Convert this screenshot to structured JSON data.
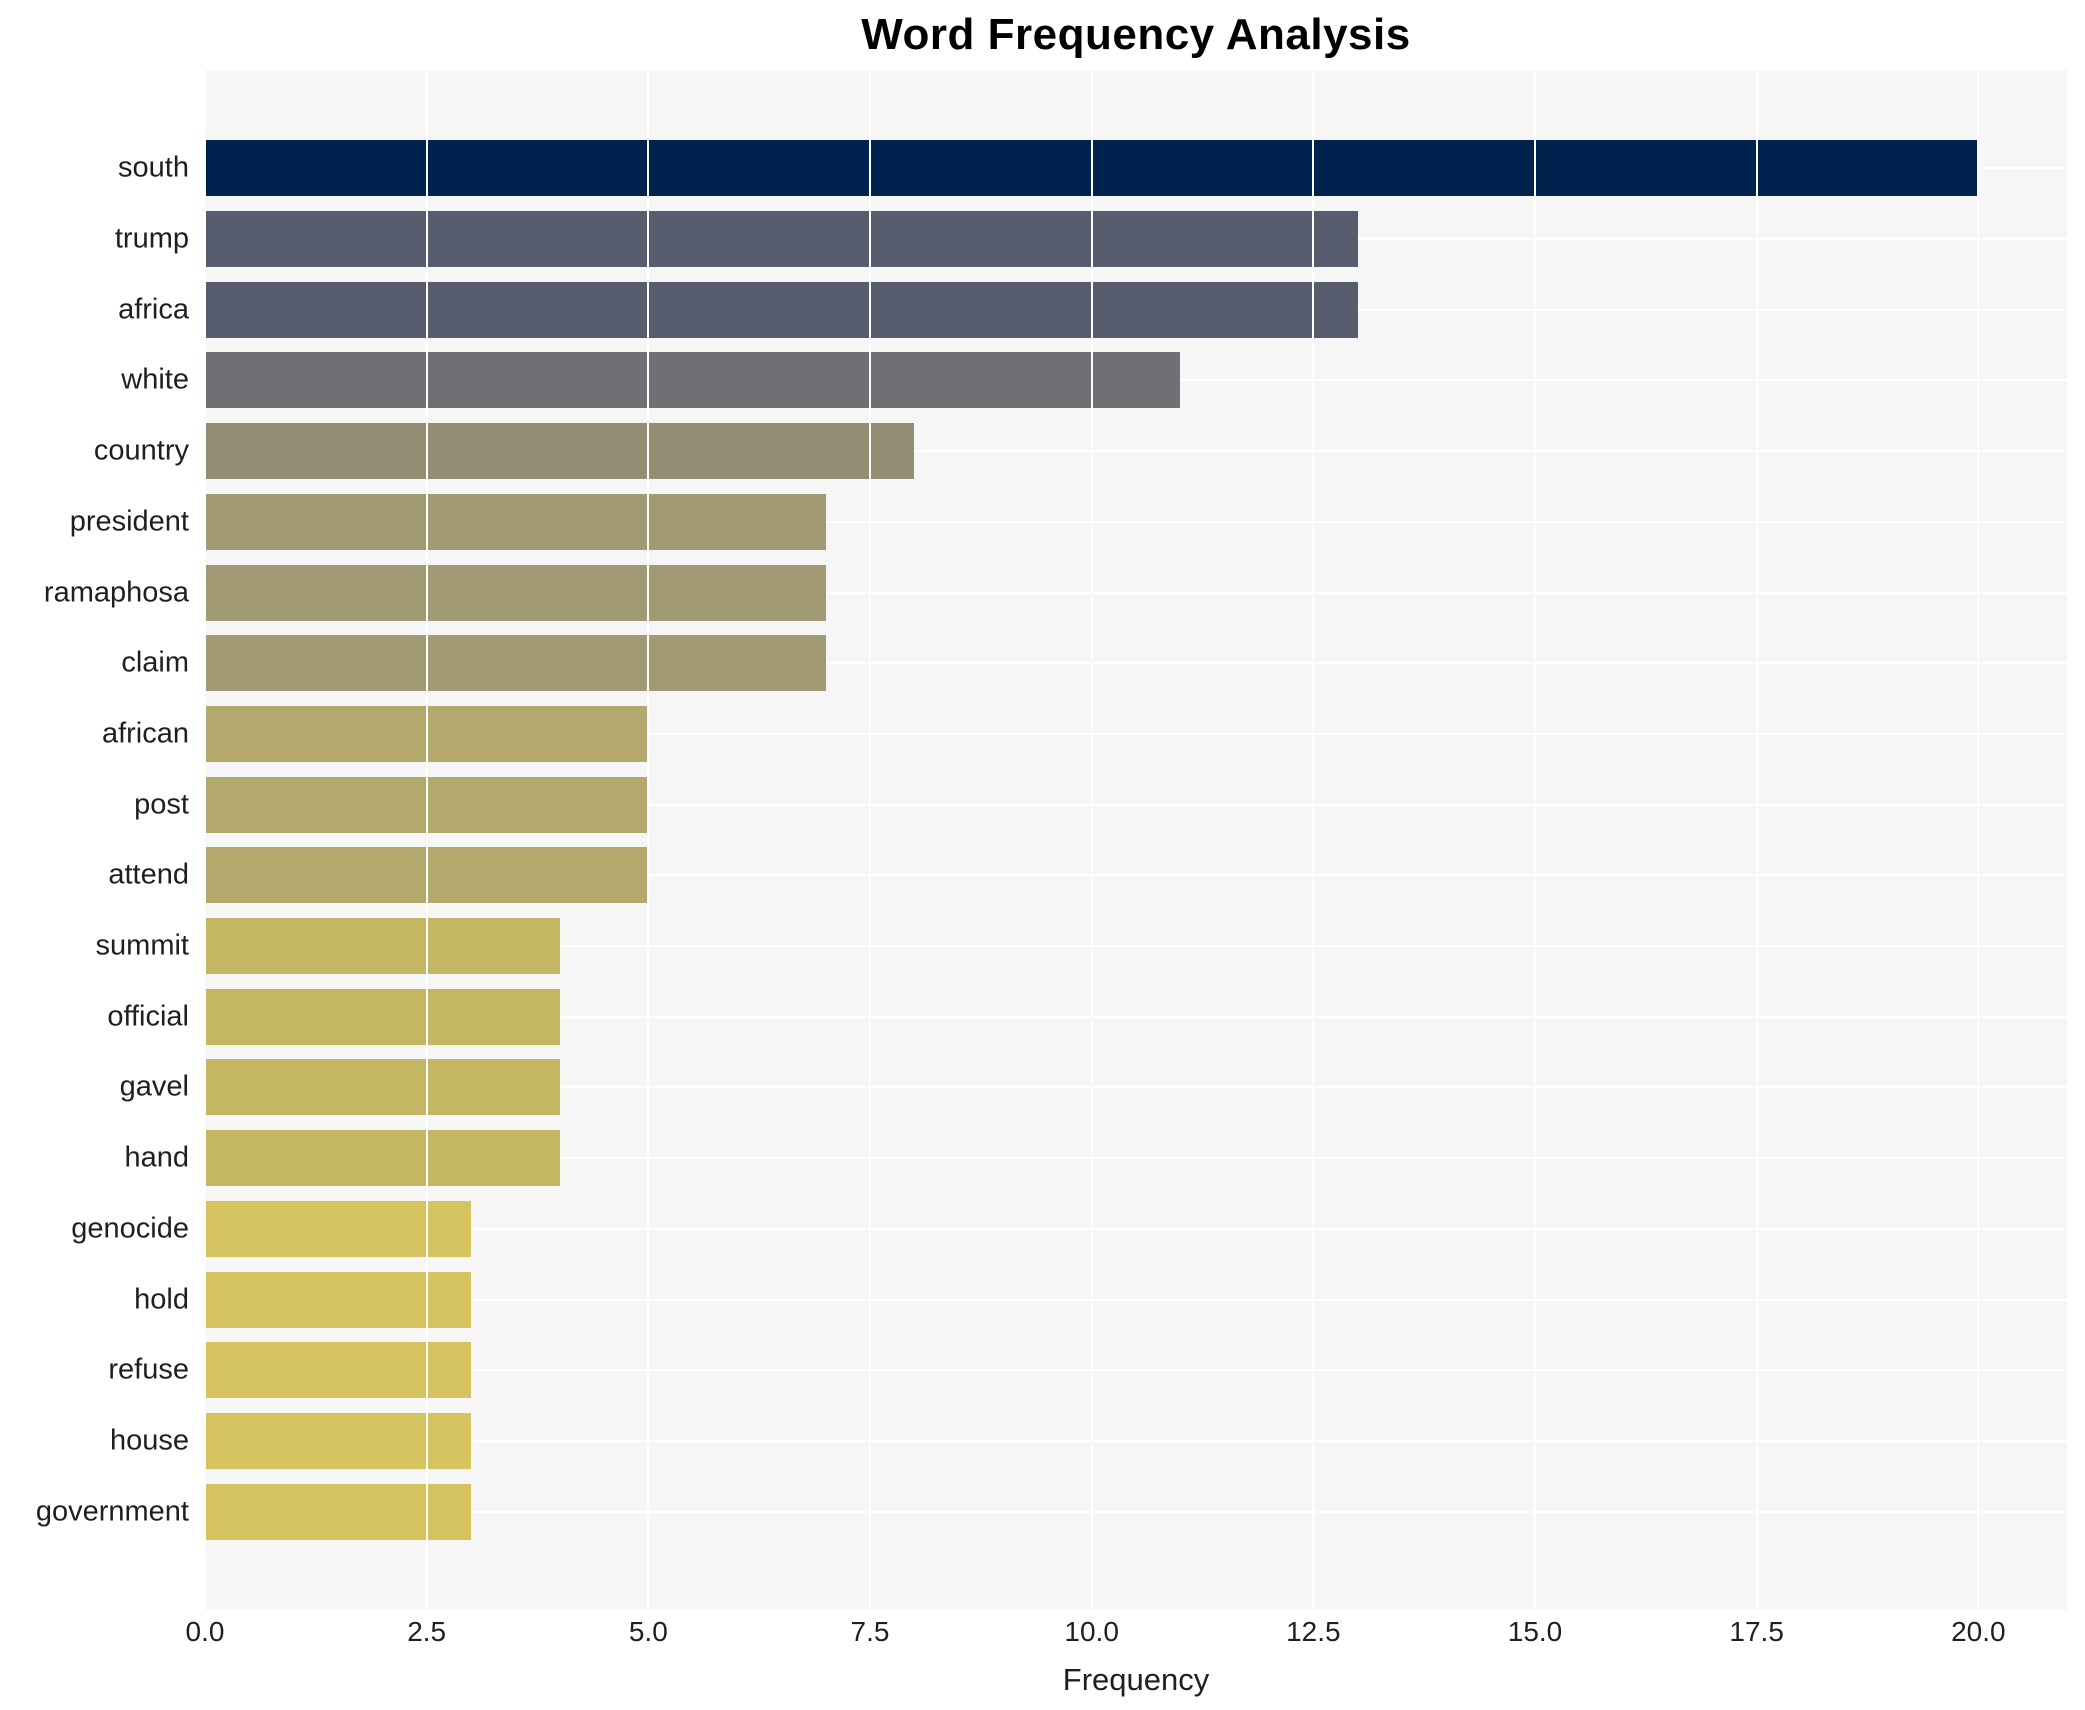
{
  "title": "Word Frequency Analysis",
  "chart_data": {
    "type": "bar",
    "orientation": "horizontal",
    "title": "Word Frequency Analysis",
    "xlabel": "Frequency",
    "ylabel": "",
    "xlim": [
      0,
      21
    ],
    "x_tick_labels": [
      "0.0",
      "2.5",
      "5.0",
      "7.5",
      "10.0",
      "12.5",
      "15.0",
      "17.5",
      "20.0"
    ],
    "x_tick_values": [
      0,
      2.5,
      5,
      7.5,
      10,
      12.5,
      15,
      17.5,
      20
    ],
    "grid": true,
    "legend": false,
    "categories": [
      "south",
      "trump",
      "africa",
      "white",
      "country",
      "president",
      "ramaphosa",
      "claim",
      "african",
      "post",
      "attend",
      "summit",
      "official",
      "gavel",
      "hand",
      "genocide",
      "hold",
      "refuse",
      "house",
      "government"
    ],
    "values": [
      20,
      13,
      13,
      11,
      8,
      7,
      7,
      7,
      5,
      5,
      5,
      4,
      4,
      4,
      4,
      3,
      3,
      3,
      3,
      3
    ],
    "bar_colors": [
      "#00224e",
      "#575d6e",
      "#575d6e",
      "#6f7073",
      "#938d74",
      "#a29a74",
      "#a29a74",
      "#a29a74",
      "#b4a96c",
      "#b4a96c",
      "#b4a96c",
      "#c5b664",
      "#c5b664",
      "#c5b664",
      "#c5b664",
      "#d4c35e",
      "#d4c35e",
      "#d4c35e",
      "#d4c35e",
      "#d4c35e"
    ],
    "colors": {
      "figure_bg": "#ffffff",
      "plot_bg": "#f6f6f7",
      "grid": "#ffffff",
      "text": "#1f1f1f",
      "title_text": "#000000"
    }
  }
}
